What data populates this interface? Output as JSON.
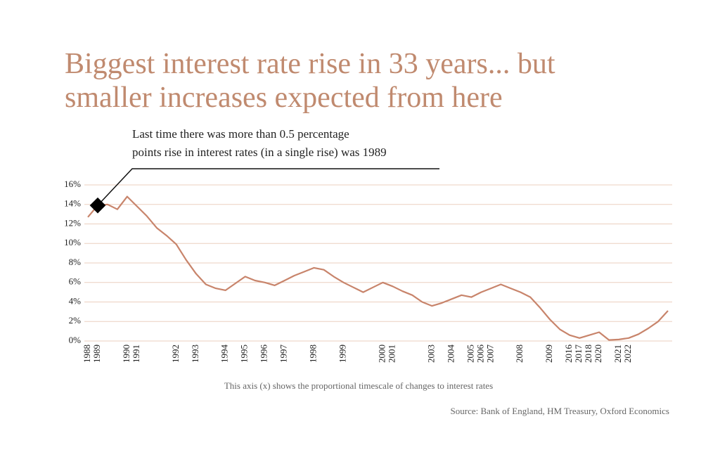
{
  "chart_data": {
    "type": "line",
    "title": [
      "Biggest interest rate rise in 33 years... but",
      "smaller increases expected from here"
    ],
    "annotation": [
      "Last time there was more than 0.5 percentage",
      "points rise in interest rates (in a single rise) was 1989"
    ],
    "annotation_index": 1,
    "x_label": "This axis (x) shows the proportional timescale of changes to interest rates",
    "source": "Source: Bank of England, HM Treasury, Oxford Economics",
    "categories": [
      "1988",
      "1989",
      null,
      null,
      "1990",
      "1991",
      null,
      null,
      null,
      "1992",
      null,
      "1993",
      null,
      null,
      "1994",
      null,
      "1995",
      null,
      "1996",
      null,
      "1997",
      null,
      null,
      "1998",
      null,
      null,
      "1999",
      null,
      null,
      null,
      "2000",
      "2001",
      null,
      null,
      null,
      "2003",
      null,
      "2004",
      null,
      "2005",
      "2006",
      "2007",
      null,
      null,
      "2008",
      null,
      null,
      "2009",
      null,
      "2016",
      "2017",
      "2018",
      "2020",
      null,
      "2021",
      "2022",
      null,
      null,
      null,
      null
    ],
    "values": [
      12.7,
      13.9,
      14.0,
      13.5,
      14.8,
      13.8,
      12.8,
      11.6,
      10.8,
      9.9,
      8.3,
      6.9,
      5.8,
      5.4,
      5.2,
      5.9,
      6.6,
      6.2,
      6.0,
      5.7,
      6.2,
      6.7,
      7.1,
      7.5,
      7.3,
      6.6,
      6.0,
      5.5,
      5.0,
      5.5,
      6.0,
      5.6,
      5.1,
      4.7,
      4.0,
      3.6,
      3.9,
      4.3,
      4.7,
      4.5,
      5.0,
      5.4,
      5.8,
      5.4,
      5.0,
      4.5,
      3.4,
      2.2,
      1.2,
      0.6,
      0.3,
      0.6,
      0.9,
      0.1,
      0.15,
      0.3,
      0.7,
      1.3,
      2.0,
      3.1
    ],
    "color": "#c8846b",
    "ylim": [
      0,
      16
    ],
    "yticks": [
      {
        "value": 0,
        "label": "0%"
      },
      {
        "value": 2,
        "label": "2%"
      },
      {
        "value": 4,
        "label": "4%"
      },
      {
        "value": 6,
        "label": "6%"
      },
      {
        "value": 8,
        "label": "8%"
      },
      {
        "value": 10,
        "label": "10%"
      },
      {
        "value": 12,
        "label": "12%"
      },
      {
        "value": 14,
        "label": "14%"
      },
      {
        "value": 16,
        "label": "16%"
      }
    ],
    "grid": true
  }
}
